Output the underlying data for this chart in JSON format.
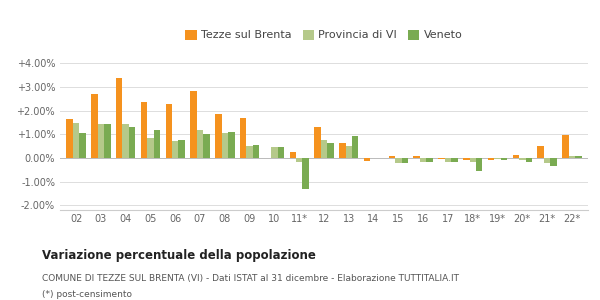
{
  "categories": [
    "02",
    "03",
    "04",
    "05",
    "06",
    "07",
    "08",
    "09",
    "10",
    "11*",
    "12",
    "13",
    "14",
    "15",
    "16",
    "17",
    "18*",
    "19*",
    "20*",
    "21*",
    "22*"
  ],
  "tezze": [
    1.65,
    2.7,
    3.4,
    2.35,
    2.3,
    2.85,
    1.85,
    1.7,
    0.0,
    0.25,
    1.3,
    0.62,
    -0.12,
    0.07,
    0.1,
    -0.05,
    -0.1,
    -0.07,
    0.12,
    0.5,
    0.97
  ],
  "provincia": [
    1.5,
    1.45,
    1.45,
    0.85,
    0.7,
    1.2,
    1.05,
    0.5,
    0.45,
    -0.18,
    0.75,
    0.5,
    0.0,
    -0.22,
    -0.15,
    -0.15,
    -0.15,
    -0.06,
    -0.1,
    -0.2,
    0.08
  ],
  "veneto": [
    1.05,
    1.45,
    1.3,
    1.2,
    0.75,
    1.0,
    1.1,
    0.55,
    0.47,
    -1.3,
    0.65,
    0.93,
    0.0,
    -0.2,
    -0.15,
    -0.15,
    -0.55,
    -0.1,
    -0.17,
    -0.35,
    0.07
  ],
  "color_tezze": "#f5921e",
  "color_provincia": "#b5c98a",
  "color_veneto": "#7aab52",
  "title": "Variazione percentuale della popolazione",
  "subtitle": "COMUNE DI TEZZE SUL BRENTA (VI) - Dati ISTAT al 31 dicembre - Elaborazione TUTTITALIA.IT",
  "footnote": "(*) post-censimento",
  "legend_labels": [
    "Tezze sul Brenta",
    "Provincia di VI",
    "Veneto"
  ],
  "ylim": [
    -2.2,
    4.4
  ],
  "yticks": [
    -2.0,
    -1.0,
    0.0,
    1.0,
    2.0,
    3.0,
    4.0
  ],
  "ytick_labels": [
    "-2.00%",
    "-1.00%",
    "0.00%",
    "+1.00%",
    "+2.00%",
    "+3.00%",
    "+4.00%"
  ],
  "background_color": "#ffffff",
  "grid_color": "#dddddd"
}
